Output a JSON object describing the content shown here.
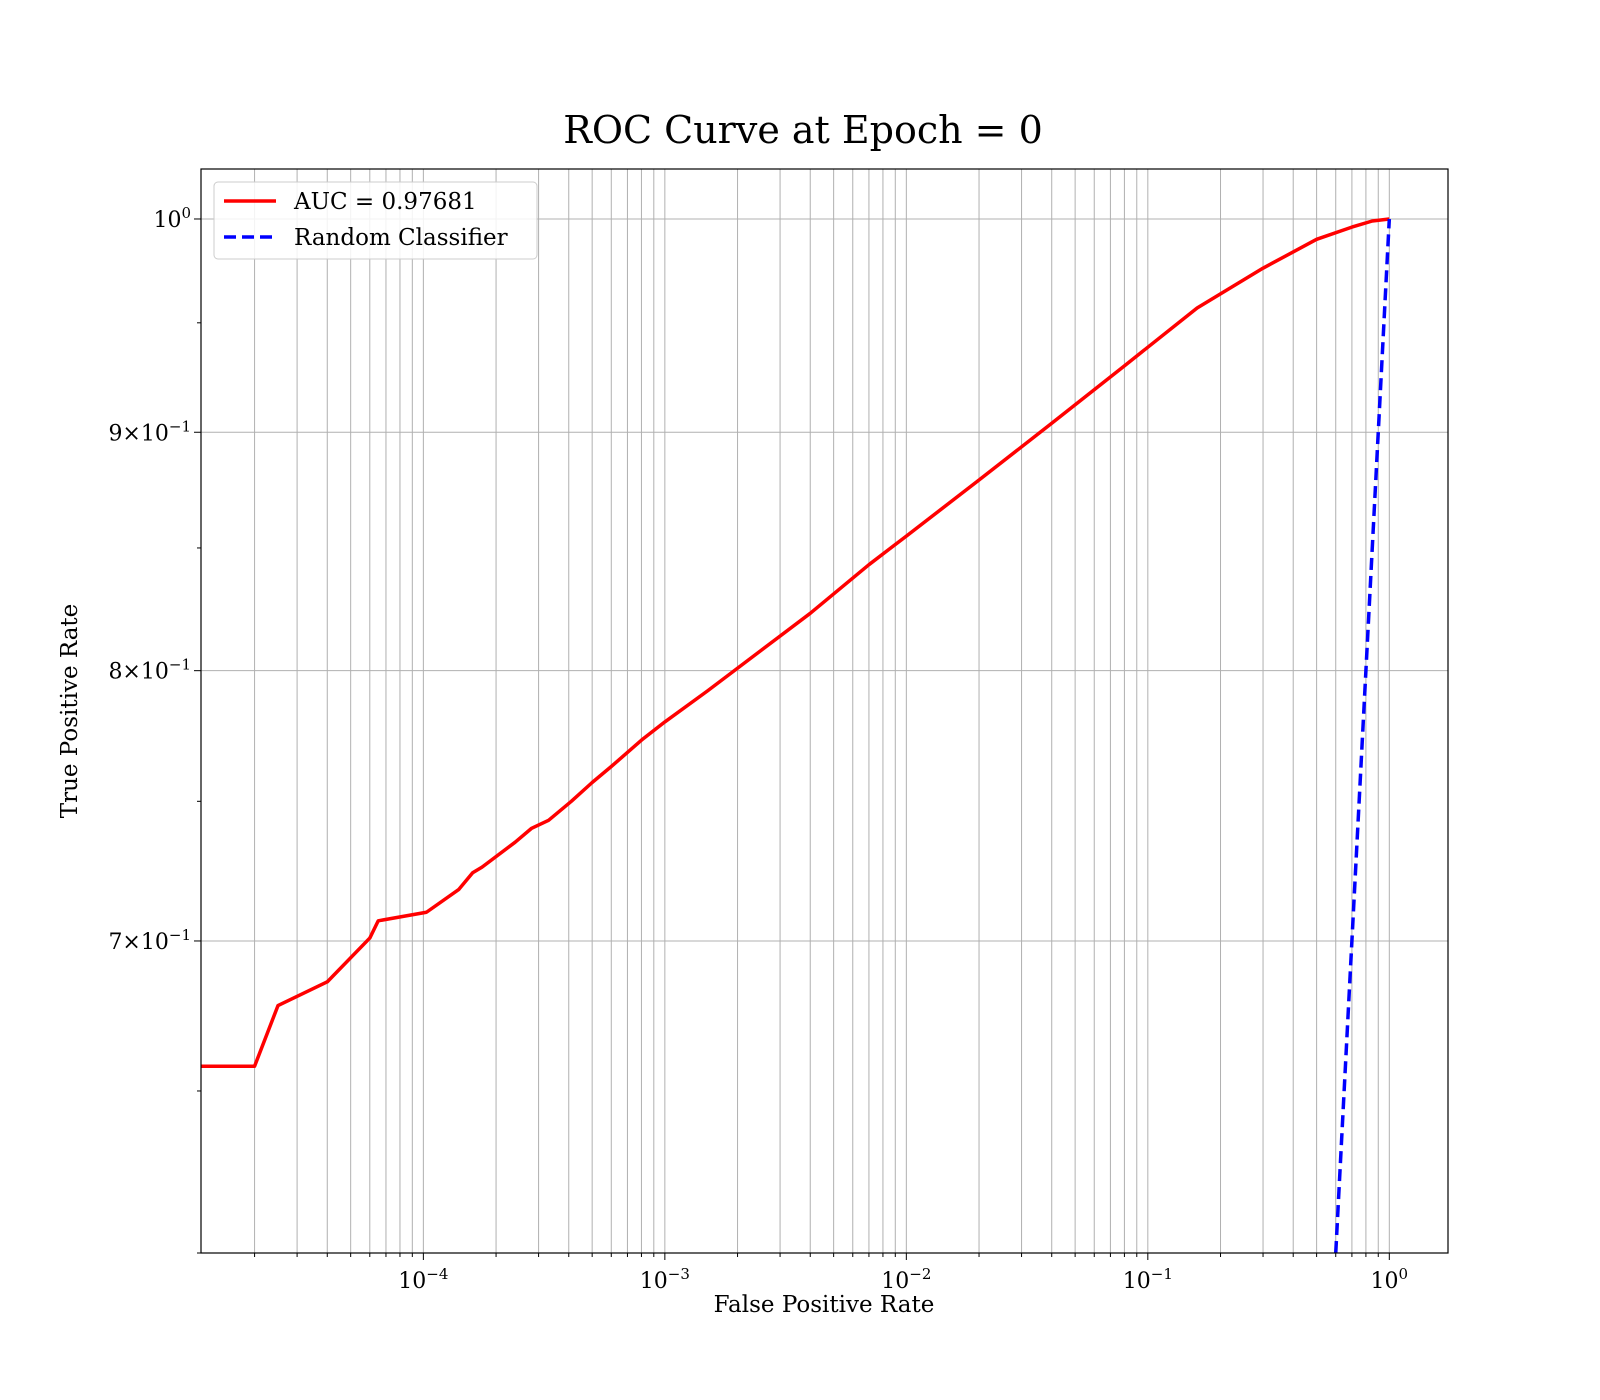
{
  "chart_data": {
    "type": "line",
    "title": "ROC Curve at Epoch = 0",
    "xlabel": "False Positive Rate",
    "ylabel": "True Positive Rate",
    "xscale": "log",
    "yscale": "log",
    "xlim": [
      1.2e-05,
      1.75
    ],
    "ylim": [
      0.6,
      1.025
    ],
    "grid": "both-major-and-minor-x",
    "legend_position": "top-left",
    "x_tick_labels": [
      {
        "value": 0.0001,
        "base": "10",
        "exp": "−4"
      },
      {
        "value": 0.001,
        "base": "10",
        "exp": "−3"
      },
      {
        "value": 0.01,
        "base": "10",
        "exp": "−2"
      },
      {
        "value": 0.1,
        "base": "10",
        "exp": "−1"
      },
      {
        "value": 1,
        "base": "10",
        "exp": "0"
      }
    ],
    "y_tick_labels": [
      {
        "value": 0.7,
        "mant": "7",
        "exp": "−1"
      },
      {
        "value": 0.8,
        "mant": "8",
        "exp": "−1"
      },
      {
        "value": 0.9,
        "mant": "9",
        "exp": "−1"
      },
      {
        "value": 1.0,
        "mant": "",
        "exp": "0"
      }
    ],
    "series": [
      {
        "name": "AUC = 0.97681",
        "color": "#ff0000",
        "style": "solid",
        "x": [
          1.2e-05,
          2e-05,
          2.5e-05,
          4e-05,
          6e-05,
          6.5e-05,
          0.000103,
          0.00014,
          0.00016,
          0.000175,
          0.00024,
          0.00028,
          0.00033,
          0.00041,
          0.0005,
          0.0006,
          0.0008,
          0.001,
          0.0015,
          0.0025,
          0.004,
          0.007,
          0.01,
          0.02,
          0.04,
          0.08,
          0.16,
          0.3,
          0.5,
          0.7,
          0.85,
          1.0
        ],
        "y": [
          0.658,
          0.658,
          0.678,
          0.686,
          0.701,
          0.707,
          0.71,
          0.718,
          0.724,
          0.726,
          0.735,
          0.74,
          0.743,
          0.75,
          0.757,
          0.763,
          0.773,
          0.78,
          0.792,
          0.808,
          0.823,
          0.843,
          0.855,
          0.879,
          0.904,
          0.93,
          0.957,
          0.976,
          0.99,
          0.996,
          0.999,
          1.0
        ]
      },
      {
        "name": "Random Classifier",
        "color": "#0000ff",
        "style": "dashed",
        "x": [
          0.6,
          1.0
        ],
        "y": [
          0.6,
          1.0
        ]
      }
    ]
  }
}
